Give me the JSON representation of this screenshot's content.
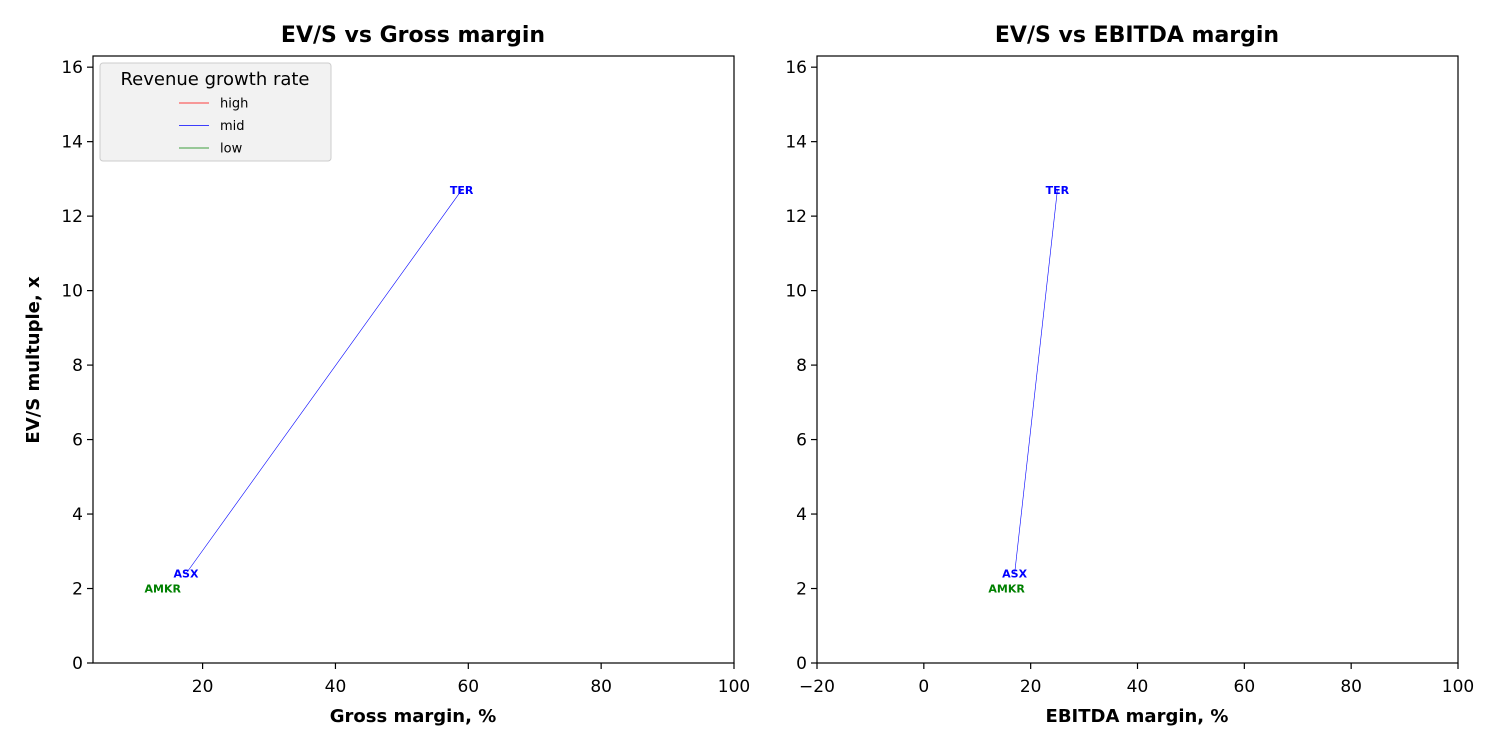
{
  "colors": {
    "high": "#ff0000",
    "mid": "#0000ff",
    "low": "#008000"
  },
  "legend": {
    "title": "Revenue growth rate",
    "placement": "upper-left",
    "entries": [
      {
        "label": "high",
        "color": "#ff0000"
      },
      {
        "label": "mid",
        "color": "#0000ff"
      },
      {
        "label": "low",
        "color": "#008000"
      }
    ]
  },
  "chart_data": [
    {
      "type": "line",
      "title": "EV/S vs Gross margin",
      "xlabel": "Gross margin, %",
      "ylabel": "EV/S multuple, x",
      "xlim": [
        3.5,
        100
      ],
      "ylim": [
        0,
        16.3
      ],
      "xticks": [
        "20",
        "40",
        "60",
        "80",
        "100"
      ],
      "yticks": [
        "0",
        "2",
        "4",
        "6",
        "8",
        "10",
        "12",
        "14",
        "16"
      ],
      "grid": false,
      "series": [
        {
          "name": "mid",
          "color": "#0000ff",
          "x": [
            17.5,
            59
          ],
          "y": [
            2.4,
            12.7
          ]
        }
      ],
      "points": [
        {
          "label": "TER",
          "group": "mid",
          "x": 59,
          "y": 12.7
        },
        {
          "label": "ASX",
          "group": "mid",
          "x": 17.5,
          "y": 2.4
        },
        {
          "label": "AMKR",
          "group": "low",
          "x": 14,
          "y": 2.0
        }
      ]
    },
    {
      "type": "line",
      "title": "EV/S vs EBITDA margin",
      "xlabel": "EBITDA margin, %",
      "ylabel": "",
      "xlim": [
        -20,
        100
      ],
      "ylim": [
        0,
        16.3
      ],
      "xticks": [
        "−20",
        "0",
        "20",
        "40",
        "60",
        "80",
        "100"
      ],
      "yticks": [
        "0",
        "2",
        "4",
        "6",
        "8",
        "10",
        "12",
        "14",
        "16"
      ],
      "grid": false,
      "series": [
        {
          "name": "mid",
          "color": "#0000ff",
          "x": [
            17,
            25
          ],
          "y": [
            2.4,
            12.7
          ]
        }
      ],
      "points": [
        {
          "label": "TER",
          "group": "mid",
          "x": 25,
          "y": 12.7
        },
        {
          "label": "ASX",
          "group": "mid",
          "x": 17,
          "y": 2.4
        },
        {
          "label": "AMKR",
          "group": "low",
          "x": 15.5,
          "y": 2.0
        }
      ]
    }
  ]
}
